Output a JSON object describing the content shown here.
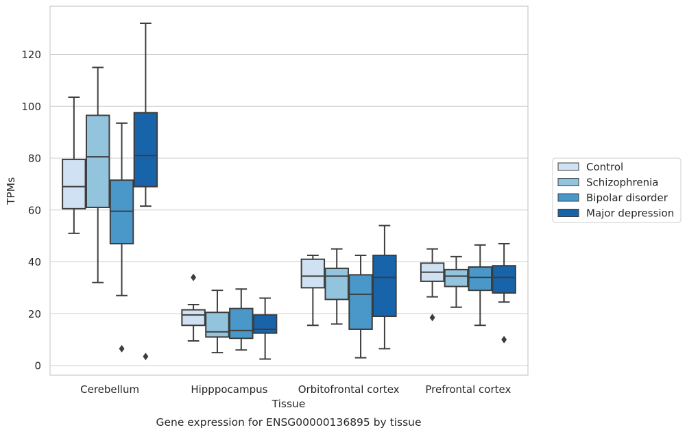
{
  "chart_data": {
    "type": "box",
    "title": "Gene expression for ENSG00000136895 by tissue",
    "xlabel": "Tissue",
    "ylabel": "TPMs",
    "ylim": [
      -3.5,
      137
    ],
    "yticks": [
      0,
      20,
      40,
      60,
      80,
      100,
      120
    ],
    "grid": "horizontal",
    "legend_position": "right",
    "categories": [
      "Cerebellum",
      "Hipppocampus",
      "Orbitofrontal cortex",
      "Prefrontal cortex"
    ],
    "series": [
      {
        "name": "Control",
        "color": "#cfe1f2",
        "boxes": [
          {
            "whislo": 51,
            "q1": 60.5,
            "med": 69,
            "q3": 79.5,
            "whishi": 103.5,
            "fliers": []
          },
          {
            "whislo": 9.5,
            "q1": 15.5,
            "med": 19.5,
            "q3": 21.5,
            "whishi": 23.5,
            "fliers": [
              34
            ]
          },
          {
            "whislo": 15.5,
            "q1": 30,
            "med": 34.5,
            "q3": 41,
            "whishi": 42.5,
            "fliers": []
          },
          {
            "whislo": 26.5,
            "q1": 32.5,
            "med": 36,
            "q3": 39.5,
            "whishi": 45,
            "fliers": [
              18.5
            ]
          }
        ]
      },
      {
        "name": "Schizophrenia",
        "color": "#93c4de",
        "boxes": [
          {
            "whislo": 32,
            "q1": 61,
            "med": 80.5,
            "q3": 96.5,
            "whishi": 115,
            "fliers": []
          },
          {
            "whislo": 5,
            "q1": 11,
            "med": 13,
            "q3": 20.5,
            "whishi": 29,
            "fliers": []
          },
          {
            "whislo": 16,
            "q1": 25.5,
            "med": 34.5,
            "q3": 37.5,
            "whishi": 45,
            "fliers": []
          },
          {
            "whislo": 22.5,
            "q1": 30.5,
            "med": 34.5,
            "q3": 37,
            "whishi": 42,
            "fliers": []
          }
        ]
      },
      {
        "name": "Bipolar disorder",
        "color": "#4a98c9",
        "boxes": [
          {
            "whislo": 27,
            "q1": 47,
            "med": 59.5,
            "q3": 71.5,
            "whishi": 93.5,
            "fliers": [
              6.5
            ]
          },
          {
            "whislo": 6,
            "q1": 10.5,
            "med": 13.5,
            "q3": 22,
            "whishi": 29.5,
            "fliers": []
          },
          {
            "whislo": 3,
            "q1": 14,
            "med": 27.5,
            "q3": 35,
            "whishi": 42.5,
            "fliers": []
          },
          {
            "whislo": 15.5,
            "q1": 29,
            "med": 34,
            "q3": 38,
            "whishi": 46.5,
            "fliers": []
          }
        ]
      },
      {
        "name": "Major depression",
        "color": "#1764ab",
        "boxes": [
          {
            "whislo": 61.5,
            "q1": 69,
            "med": 81,
            "q3": 97.5,
            "whishi": 132,
            "fliers": [
              3.5
            ]
          },
          {
            "whislo": 2.5,
            "q1": 12.5,
            "med": 14,
            "q3": 19.5,
            "whishi": 26,
            "fliers": []
          },
          {
            "whislo": 6.5,
            "q1": 19,
            "med": 34,
            "q3": 42.5,
            "whishi": 54,
            "fliers": []
          },
          {
            "whislo": 24.5,
            "q1": 28,
            "med": 34,
            "q3": 38.5,
            "whishi": 47,
            "fliers": [
              10
            ]
          }
        ]
      }
    ]
  }
}
